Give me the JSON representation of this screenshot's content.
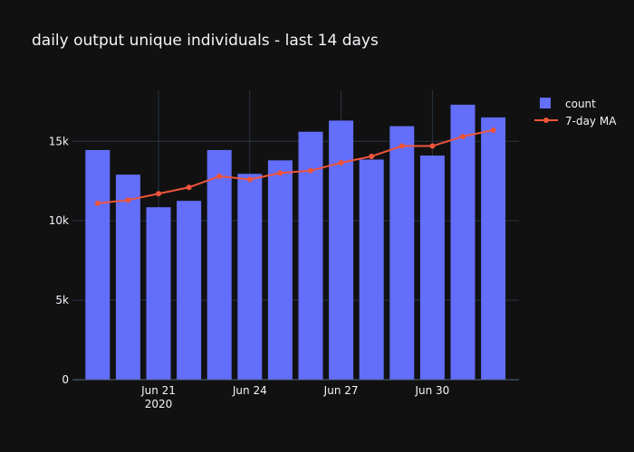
{
  "chart_data": {
    "type": "bar",
    "title": "daily output unique individuals - last 14 days",
    "xlabel": "",
    "ylabel": "",
    "x": [
      "2020-06-19",
      "2020-06-20",
      "2020-06-21",
      "2020-06-22",
      "2020-06-23",
      "2020-06-24",
      "2020-06-25",
      "2020-06-26",
      "2020-06-27",
      "2020-06-28",
      "2020-06-29",
      "2020-06-30",
      "2020-07-01",
      "2020-07-02"
    ],
    "x_ticks": [
      {
        "date": "2020-06-21",
        "label": "Jun 21",
        "sublabel": "2020"
      },
      {
        "date": "2020-06-24",
        "label": "Jun 24",
        "sublabel": ""
      },
      {
        "date": "2020-06-27",
        "label": "Jun 27",
        "sublabel": ""
      },
      {
        "date": "2020-06-30",
        "label": "Jun 30",
        "sublabel": ""
      }
    ],
    "ylim": [
      0,
      18200
    ],
    "y_ticks": [
      {
        "value": 0,
        "label": "0"
      },
      {
        "value": 5000,
        "label": "5k"
      },
      {
        "value": 10000,
        "label": "10k"
      },
      {
        "value": 15000,
        "label": "15k"
      }
    ],
    "grid": true,
    "legend_position": "top-right",
    "series": [
      {
        "name": "count",
        "type": "bar",
        "color": "#636efa",
        "values": [
          14450,
          12900,
          10850,
          11250,
          14450,
          12950,
          13800,
          15600,
          16300,
          13850,
          15950,
          14100,
          17300,
          16500
        ]
      },
      {
        "name": "7-day MA",
        "type": "line",
        "color": "#ef553b",
        "values": [
          11100,
          11300,
          11700,
          12100,
          12800,
          12600,
          13000,
          13150,
          13650,
          14050,
          14700,
          14700,
          15300,
          15700
        ]
      }
    ]
  }
}
